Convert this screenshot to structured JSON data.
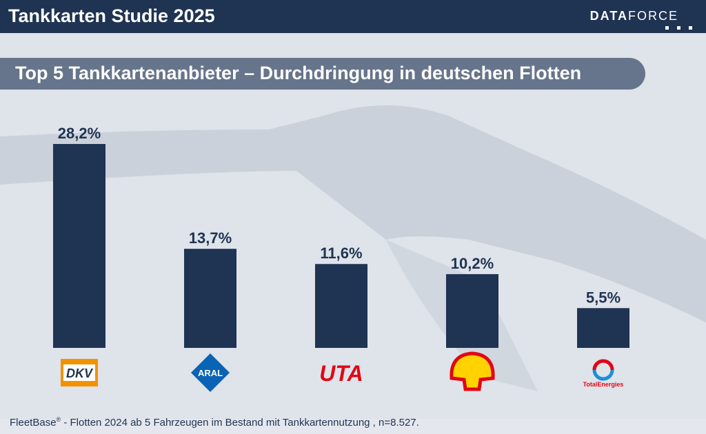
{
  "header": {
    "title": "Tankkarten Studie 2025",
    "brand_bold": "DATA",
    "brand_light": "FORCE"
  },
  "subtitle": "Top 5 Tankkartenanbieter – Durchdringung in deutschen Flotten",
  "colors": {
    "bar": "#1f3352",
    "header": "#1f3352",
    "pill": "#66758b"
  },
  "logos": [
    {
      "icon": "dkv-logo",
      "text": "DKV",
      "color": "#f39200"
    },
    {
      "icon": "aral-logo",
      "text": "ARAL",
      "color": "#0a63b4"
    },
    {
      "icon": "uta-logo",
      "text": "UTA",
      "color": "#e30613"
    },
    {
      "icon": "shell-logo",
      "text": "",
      "color": "#e30613"
    },
    {
      "icon": "totalenergies-logo",
      "text": "TotalEnergies",
      "color": "#e30613"
    }
  ],
  "chart_data": {
    "type": "bar",
    "title": "Top 5 Tankkartenanbieter – Durchdringung in deutschen Flotten",
    "categories": [
      "DKV",
      "ARAL",
      "UTA",
      "Shell",
      "TotalEnergies"
    ],
    "values": [
      28.2,
      13.7,
      11.6,
      10.2,
      5.5
    ],
    "labels": [
      "28,2%",
      "13,7%",
      "11,6%",
      "10,2%",
      "5,5%"
    ],
    "ylim": [
      0,
      28.2
    ],
    "grid": false,
    "legend": "none"
  },
  "footer": {
    "brand": "FleetBase",
    "registered": "®",
    "text": " - Flotten 2024 ab 5 Fahrzeugen im Bestand mit Tankkartennutzung , n=8.527."
  }
}
